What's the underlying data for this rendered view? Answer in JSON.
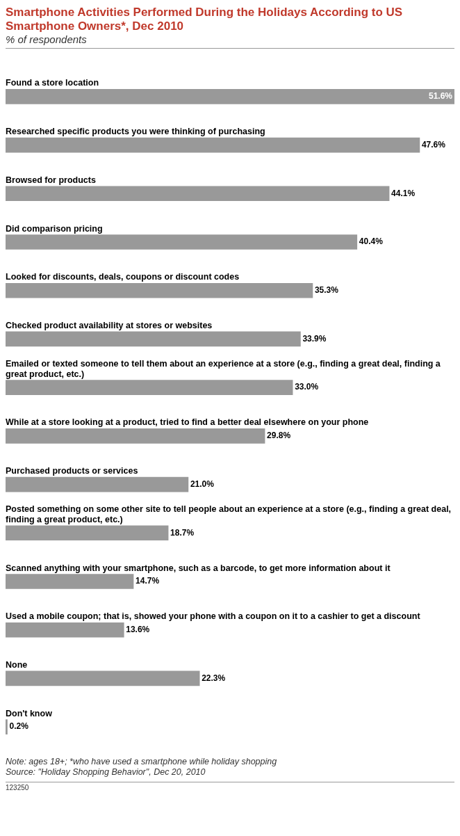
{
  "chart_data": {
    "type": "bar",
    "orientation": "horizontal",
    "title": "Smartphone Activities Performed During the Holidays According to US Smartphone Owners*, Dec 2010",
    "subtitle": "% of respondents",
    "categories": [
      "Found a store location",
      "Researched specific products you were thinking of purchasing",
      "Browsed for products",
      "Did comparison pricing",
      "Looked for discounts, deals, coupons or discount codes",
      "Checked product availability at stores or websites",
      "Emailed or texted someone to tell them about an experience at a store (e.g., finding a great deal, finding a great product, etc.)",
      "While at a store looking at a product, tried to find a better deal elsewhere on your phone",
      "Purchased products or services",
      "Posted something on some other site to tell people about an experience at a store (e.g., finding a great deal, finding a great product, etc.)",
      "Scanned anything with your smartphone, such as a barcode, to get more information about it",
      "Used a mobile coupon; that is, showed your phone with a coupon on it to a cashier to get a discount",
      "None",
      "Don't know"
    ],
    "values": [
      51.6,
      47.6,
      44.1,
      40.4,
      35.3,
      33.9,
      33.0,
      29.8,
      21.0,
      18.7,
      14.7,
      13.6,
      22.3,
      0.2
    ],
    "value_labels": [
      "51.6%",
      "47.6%",
      "44.1%",
      "40.4%",
      "35.3%",
      "33.9%",
      "33.0%",
      "29.8%",
      "21.0%",
      "18.7%",
      "14.7%",
      "13.6%",
      "22.3%",
      "0.2%"
    ],
    "color": "#999999",
    "legend": false,
    "annotations": [
      "Note: ages 18+; *who have used a smartphone while holiday shopping",
      "Source: \"Holiday Shopping Behavior\", Dec 20, 2010",
      "123250"
    ]
  }
}
